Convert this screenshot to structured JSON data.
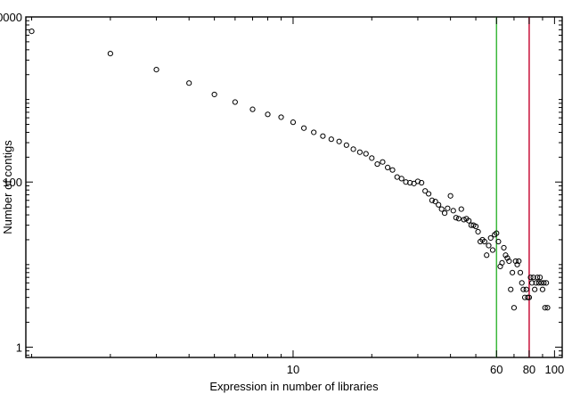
{
  "chart_data": {
    "type": "scatter",
    "title": "",
    "xlabel": "Expression in number of libraries",
    "ylabel": "Number of contigs",
    "xscale": "log",
    "yscale": "log",
    "xlim": [
      0.95,
      107
    ],
    "ylim": [
      0.75,
      10000
    ],
    "grid": false,
    "legend": "none",
    "x_ticks": [
      {
        "value": 10,
        "label": "10"
      },
      {
        "value": 60,
        "label": "60"
      },
      {
        "value": 80,
        "label": "80"
      },
      {
        "value": 100,
        "label": "100"
      }
    ],
    "y_ticks": [
      {
        "value": 1,
        "label": "1"
      },
      {
        "value": 100,
        "label": "100"
      },
      {
        "value": 10000,
        "label": "10000"
      }
    ],
    "vlines": [
      {
        "x": 60,
        "color": "#3cb83c"
      },
      {
        "x": 80,
        "color": "#c8103a"
      }
    ],
    "marker": {
      "shape": "open-circle",
      "color": "#000000"
    },
    "points": [
      [
        1,
        6700
      ],
      [
        2,
        3600
      ],
      [
        3,
        2300
      ],
      [
        4,
        1580
      ],
      [
        5,
        1150
      ],
      [
        6,
        930
      ],
      [
        7,
        760
      ],
      [
        8,
        660
      ],
      [
        9,
        610
      ],
      [
        10,
        530
      ],
      [
        11,
        450
      ],
      [
        12,
        400
      ],
      [
        13,
        360
      ],
      [
        14,
        330
      ],
      [
        15,
        310
      ],
      [
        16,
        280
      ],
      [
        17,
        250
      ],
      [
        18,
        230
      ],
      [
        19,
        220
      ],
      [
        20,
        195
      ],
      [
        21,
        165
      ],
      [
        22,
        175
      ],
      [
        23,
        150
      ],
      [
        24,
        140
      ],
      [
        25,
        115
      ],
      [
        26,
        110
      ],
      [
        27,
        100
      ],
      [
        28,
        98
      ],
      [
        29,
        96
      ],
      [
        30,
        102
      ],
      [
        31,
        98
      ],
      [
        32,
        78
      ],
      [
        33,
        72
      ],
      [
        34,
        60
      ],
      [
        35,
        58
      ],
      [
        36,
        53
      ],
      [
        37,
        47
      ],
      [
        38,
        42
      ],
      [
        39,
        48
      ],
      [
        40,
        68
      ],
      [
        41,
        45
      ],
      [
        42,
        37
      ],
      [
        43,
        36
      ],
      [
        44,
        47
      ],
      [
        45,
        35
      ],
      [
        46,
        36
      ],
      [
        47,
        34
      ],
      [
        48,
        30
      ],
      [
        49,
        30
      ],
      [
        50,
        29
      ],
      [
        51,
        25
      ],
      [
        52,
        19
      ],
      [
        53,
        20
      ],
      [
        54,
        19
      ],
      [
        55,
        13
      ],
      [
        56,
        17
      ],
      [
        57,
        21
      ],
      [
        58,
        15
      ],
      [
        59,
        23
      ],
      [
        60,
        24
      ],
      [
        61,
        19
      ],
      [
        62,
        9.5
      ],
      [
        63,
        10.5
      ],
      [
        64,
        16
      ],
      [
        65,
        13
      ],
      [
        66,
        12
      ],
      [
        67,
        11
      ],
      [
        68,
        5
      ],
      [
        69,
        8
      ],
      [
        70,
        3
      ],
      [
        71,
        11
      ],
      [
        72,
        10
      ],
      [
        73,
        11
      ],
      [
        74,
        8
      ],
      [
        75,
        6
      ],
      [
        76,
        5
      ],
      [
        77,
        4
      ],
      [
        78,
        5
      ],
      [
        79,
        4
      ],
      [
        80,
        4
      ],
      [
        81,
        7
      ],
      [
        82,
        6
      ],
      [
        83,
        7
      ],
      [
        84,
        5
      ],
      [
        85,
        6
      ],
      [
        86,
        7
      ],
      [
        87,
        6
      ],
      [
        88,
        7
      ],
      [
        89,
        6
      ],
      [
        90,
        5
      ],
      [
        91,
        6
      ],
      [
        92,
        3
      ],
      [
        93,
        6
      ],
      [
        94,
        3
      ]
    ]
  }
}
